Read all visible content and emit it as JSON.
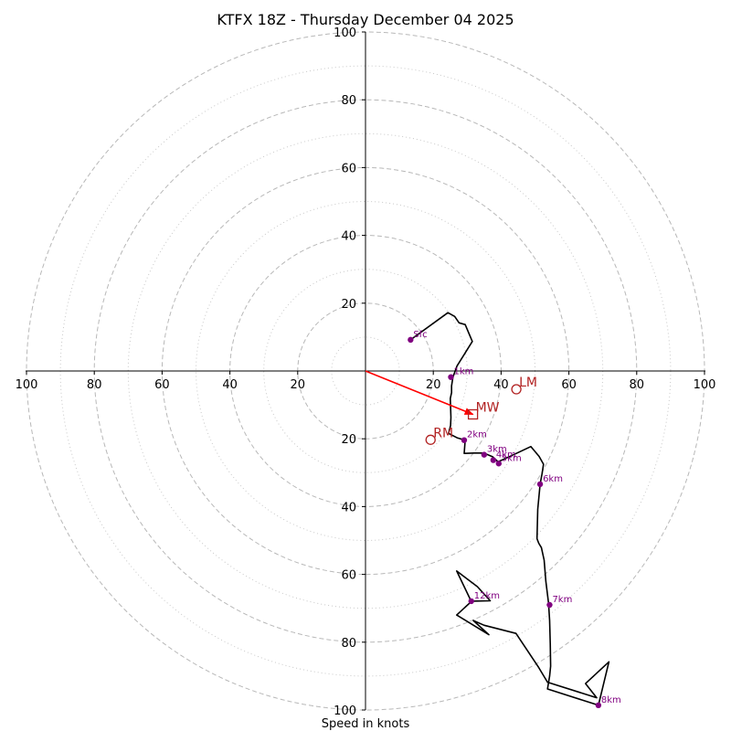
{
  "chart_data": {
    "type": "hodograph",
    "title": "KTFX 18Z - Thursday December 04 2025",
    "xlabel": "Speed in knots",
    "range": [
      -100,
      100
    ],
    "ring_major": [
      20,
      40,
      60,
      80,
      100
    ],
    "ring_minor": [
      10,
      30,
      50,
      70,
      90
    ],
    "x_ticks": [
      {
        "v": -100,
        "label": "100"
      },
      {
        "v": -80,
        "label": "80"
      },
      {
        "v": -60,
        "label": "60"
      },
      {
        "v": -40,
        "label": "40"
      },
      {
        "v": -20,
        "label": "20"
      },
      {
        "v": 20,
        "label": "20"
      },
      {
        "v": 40,
        "label": "40"
      },
      {
        "v": 60,
        "label": "60"
      },
      {
        "v": 80,
        "label": "80"
      },
      {
        "v": 100,
        "label": "100"
      }
    ],
    "y_ticks": [
      {
        "v": 100,
        "label": "100"
      },
      {
        "v": 80,
        "label": "80"
      },
      {
        "v": 60,
        "label": "60"
      },
      {
        "v": 40,
        "label": "40"
      },
      {
        "v": 20,
        "label": "20"
      },
      {
        "v": -20,
        "label": "20"
      },
      {
        "v": -40,
        "label": "40"
      },
      {
        "v": -60,
        "label": "60"
      },
      {
        "v": -80,
        "label": "80"
      },
      {
        "v": -100,
        "label": "100"
      }
    ],
    "trace_color": "#000000",
    "height_color": "#800080",
    "motion_color": "#b22222",
    "shear_color": "#ff0000",
    "trace": [
      [
        13.3,
        9.2
      ],
      [
        24.3,
        17.2
      ],
      [
        26.3,
        16.1
      ],
      [
        27.6,
        14.2
      ],
      [
        29.4,
        13.7
      ],
      [
        31.5,
        8.7
      ],
      [
        27.0,
        1.5
      ],
      [
        25.8,
        -1.8
      ],
      [
        25.4,
        -4.4
      ],
      [
        25.4,
        -6.4
      ],
      [
        25.0,
        -8.1
      ],
      [
        25.2,
        -13.7
      ],
      [
        25.1,
        -16.1
      ],
      [
        24.5,
        -18.4
      ],
      [
        27.0,
        -19.7
      ],
      [
        29.4,
        -20.4
      ],
      [
        29.1,
        -24.3
      ],
      [
        32.0,
        -24.2
      ],
      [
        34.9,
        -24.2
      ],
      [
        37.5,
        -25.3
      ],
      [
        39.1,
        -26.8
      ],
      [
        43.0,
        -25.0
      ],
      [
        48.8,
        -22.3
      ],
      [
        51.2,
        -25.2
      ],
      [
        52.5,
        -27.5
      ],
      [
        52.1,
        -30.2
      ],
      [
        51.5,
        -33.4
      ],
      [
        50.8,
        -40.8
      ],
      [
        50.6,
        -49.5
      ],
      [
        51.1,
        -50.8
      ],
      [
        51.9,
        -52.1
      ],
      [
        52.7,
        -55.8
      ],
      [
        53.2,
        -62.1
      ],
      [
        54.0,
        -68.4
      ],
      [
        54.3,
        -73.6
      ],
      [
        54.5,
        -80.4
      ],
      [
        54.6,
        -87.1
      ],
      [
        54.3,
        -90.0
      ],
      [
        53.7,
        -93.8
      ],
      [
        68.7,
        -98.6
      ],
      [
        71.8,
        -85.8
      ],
      [
        64.9,
        -92.2
      ],
      [
        68.2,
        -96.4
      ],
      [
        53.7,
        -91.8
      ],
      [
        51.1,
        -87.5
      ],
      [
        44.4,
        -77.4
      ],
      [
        35.0,
        -75.0
      ],
      [
        31.8,
        -73.6
      ],
      [
        36.4,
        -77.8
      ],
      [
        26.9,
        -72.0
      ],
      [
        31.2,
        -68.0
      ],
      [
        26.9,
        -59.0
      ],
      [
        33.0,
        -63.6
      ],
      [
        36.8,
        -67.8
      ],
      [
        31.2,
        -67.9
      ]
    ],
    "height_points": [
      {
        "label": "Sfc",
        "u": 13.3,
        "v": 9.2
      },
      {
        "label": "1km",
        "u": 25.2,
        "v": -1.8
      },
      {
        "label": "2km",
        "u": 29.1,
        "v": -20.4
      },
      {
        "label": "3km",
        "u": 35.0,
        "v": -24.7
      },
      {
        "label": "4km",
        "u": 37.7,
        "v": -26.3
      },
      {
        "label": "5km",
        "u": 39.3,
        "v": -27.3
      },
      {
        "label": "6km",
        "u": 51.5,
        "v": -33.4
      },
      {
        "label": "7km",
        "u": 54.3,
        "v": -69.0
      },
      {
        "label": "8km",
        "u": 68.7,
        "v": -98.6
      },
      {
        "label": "12km",
        "u": 31.2,
        "v": -67.9
      }
    ],
    "storm_motion": {
      "LM": {
        "label": "LM",
        "u": 44.5,
        "v": -5.4
      },
      "RM": {
        "label": "RM",
        "u": 19.2,
        "v": -20.3
      },
      "MW": {
        "label": "MW",
        "u": 31.7,
        "v": -12.8
      }
    },
    "shear_vector": {
      "from": [
        0,
        0
      ],
      "to": [
        31.7,
        -12.8
      ]
    }
  }
}
